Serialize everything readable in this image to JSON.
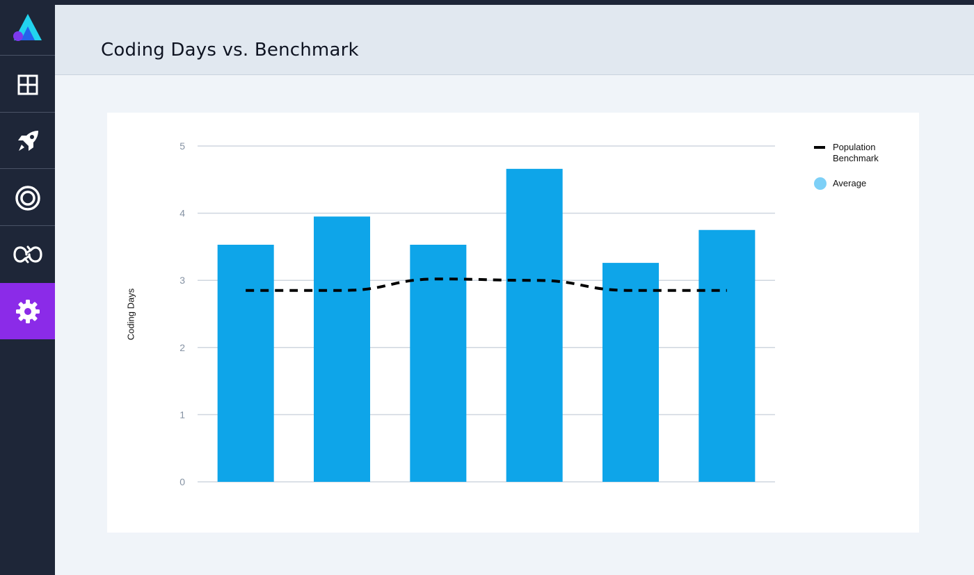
{
  "header": {
    "title": "Coding Days vs. Benchmark"
  },
  "sidebar": {
    "logo": "logo-icon",
    "items": [
      {
        "icon": "dashboard-grid-icon",
        "active": false
      },
      {
        "icon": "rocket-icon",
        "active": false
      },
      {
        "icon": "target-icon",
        "active": false
      },
      {
        "icon": "loop-icon",
        "active": false
      },
      {
        "icon": "gear-icon",
        "active": true
      }
    ]
  },
  "colors": {
    "bar": "#0ea5e9",
    "benchmark": "#000000",
    "legend_average": "#7dd0f7",
    "active_nav": "#8b2be8"
  },
  "chart_data": {
    "type": "bar",
    "title": "",
    "xlabel": "",
    "ylabel": "Coding Days",
    "ylim": [
      0,
      5
    ],
    "yticks": [
      "0",
      "1",
      "2",
      "3",
      "4",
      "5"
    ],
    "categories": [
      "",
      "",
      "",
      "",
      "",
      ""
    ],
    "series": [
      {
        "name": "Average",
        "type": "bar",
        "values": [
          3.53,
          3.95,
          3.53,
          4.66,
          3.26,
          3.75
        ]
      },
      {
        "name": "Population Benchmark",
        "type": "line",
        "style": "dashed",
        "values": [
          2.85,
          2.85,
          3.02,
          3.0,
          2.85,
          2.85
        ]
      }
    ],
    "legend": {
      "position": "right",
      "entries": [
        "Population Benchmark",
        "Average"
      ]
    },
    "grid": true
  }
}
